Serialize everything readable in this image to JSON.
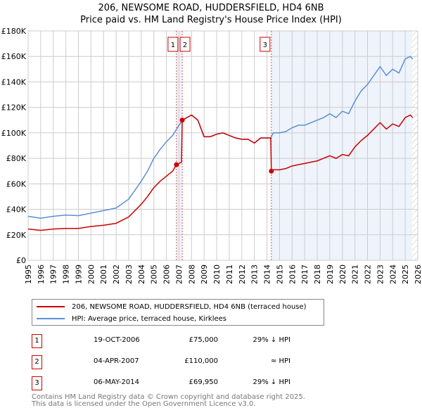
{
  "title": "206, NEWSOME ROAD, HUDDERSFIELD, HD4 6NB",
  "subtitle": "Price paid vs. HM Land Registry's House Price Index (HPI)",
  "chart_data": {
    "type": "line",
    "title": "206, NEWSOME ROAD, HUDDERSFIELD, HD4 6NB — Price paid vs. HM Land Registry's House Price Index (HPI)",
    "xlim": [
      1995,
      2026
    ],
    "ylim": [
      0,
      180000
    ],
    "x_ticks": [
      "1995",
      "1996",
      "1997",
      "1998",
      "1999",
      "2000",
      "2001",
      "2002",
      "2003",
      "2004",
      "2005",
      "2006",
      "2007",
      "2008",
      "2009",
      "2010",
      "2011",
      "2012",
      "2013",
      "2014",
      "2015",
      "2016",
      "2017",
      "2018",
      "2019",
      "2020",
      "2021",
      "2022",
      "2023",
      "2024",
      "2025",
      "2026"
    ],
    "y_ticks": [
      {
        "v": 0,
        "label": "£0"
      },
      {
        "v": 20000,
        "label": "£20K"
      },
      {
        "v": 40000,
        "label": "£40K"
      },
      {
        "v": 60000,
        "label": "£60K"
      },
      {
        "v": 80000,
        "label": "£80K"
      },
      {
        "v": 100000,
        "label": "£100K"
      },
      {
        "v": 120000,
        "label": "£120K"
      },
      {
        "v": 140000,
        "label": "£140K"
      },
      {
        "v": 160000,
        "label": "£160K"
      },
      {
        "v": 180000,
        "label": "£180K"
      }
    ],
    "grid": true,
    "series": [
      {
        "name": "206, NEWSOME ROAD, HUDDERSFIELD, HD4 6NB (terraced house)",
        "color": "#cc0000",
        "x": [
          1995,
          1996,
          1997,
          1998,
          1999,
          2000,
          2001,
          2002,
          2003,
          2004,
          2004.5,
          2005,
          2005.5,
          2006,
          2006.5,
          2006.8,
          2007.2,
          2007.26,
          2008,
          2008.5,
          2009,
          2009.5,
          2010,
          2010.5,
          2011,
          2011.5,
          2012,
          2012.5,
          2013,
          2013.5,
          2014,
          2014.3,
          2014.35,
          2014.5,
          2015,
          2015.5,
          2016,
          2016.5,
          2017,
          2017.5,
          2018,
          2018.5,
          2019,
          2019.5,
          2020,
          2020.5,
          2021,
          2021.5,
          2022,
          2022.5,
          2023,
          2023.5,
          2024,
          2024.5,
          2025,
          2025.4,
          2025.6
        ],
        "y": [
          24500,
          23500,
          24500,
          25000,
          25000,
          26500,
          27500,
          29000,
          34000,
          44000,
          50000,
          57000,
          62000,
          66000,
          70000,
          75000,
          77000,
          110000,
          114000,
          110000,
          97000,
          97000,
          99000,
          100000,
          98000,
          96000,
          95000,
          95000,
          92000,
          96000,
          96000,
          96000,
          69950,
          71000,
          71000,
          72000,
          74000,
          75000,
          76000,
          77000,
          78000,
          80000,
          82000,
          80000,
          83000,
          82000,
          89000,
          94000,
          98000,
          103000,
          108000,
          103000,
          107000,
          105000,
          112000,
          114000,
          112000
        ]
      },
      {
        "name": "HPI: Average price, terraced house, Kirklees",
        "color": "#5b8fd4",
        "x": [
          1995,
          1996,
          1997,
          1998,
          1999,
          2000,
          2001,
          2002,
          2003,
          2004,
          2004.5,
          2005,
          2005.5,
          2006,
          2006.5,
          2007,
          2007.3,
          2008,
          2008.5,
          2009,
          2009.5,
          2010,
          2010.5,
          2011,
          2011.5,
          2012,
          2012.5,
          2013,
          2013.5,
          2014,
          2014.3,
          2014.5,
          2015,
          2015.5,
          2016,
          2016.5,
          2017,
          2017.5,
          2018,
          2018.5,
          2019,
          2019.5,
          2020,
          2020.5,
          2021,
          2021.5,
          2022,
          2022.5,
          2023,
          2023.5,
          2024,
          2024.5,
          2025,
          2025.4,
          2025.6
        ],
        "y": [
          34500,
          33000,
          34500,
          35500,
          35000,
          37000,
          39000,
          41000,
          48000,
          62000,
          70000,
          80000,
          87000,
          93000,
          98000,
          106000,
          110000,
          114000,
          110000,
          97000,
          97000,
          99000,
          100000,
          98000,
          96000,
          95000,
          95000,
          92000,
          96000,
          96000,
          96000,
          100000,
          100000,
          101000,
          104000,
          106000,
          106000,
          108000,
          110000,
          112000,
          115000,
          112000,
          117000,
          115000,
          125000,
          133000,
          138000,
          145000,
          152000,
          145000,
          150000,
          147000,
          158000,
          160000,
          158000
        ]
      }
    ],
    "sales": [
      {
        "label": "1",
        "x": 2006.8,
        "y": 75000
      },
      {
        "label": "2",
        "x": 2007.26,
        "y": 110000
      },
      {
        "label": "3",
        "x": 2014.35,
        "y": 69950
      }
    ],
    "shaded_from": 2014.35,
    "hatched_from": 2025.55,
    "legend_position": "below"
  },
  "legend": [
    "206, NEWSOME ROAD, HUDDERSFIELD, HD4 6NB (terraced house)",
    "HPI: Average price, terraced house, Kirklees"
  ],
  "transactions": [
    {
      "num": "1",
      "date": "19-OCT-2006",
      "price": "£75,000",
      "hpi": "29% ↓ HPI"
    },
    {
      "num": "2",
      "date": "04-APR-2007",
      "price": "£110,000",
      "hpi": "≈ HPI"
    },
    {
      "num": "3",
      "date": "06-MAY-2014",
      "price": "£69,950",
      "hpi": "29% ↓ HPI"
    }
  ],
  "footer": [
    "Contains HM Land Registry data © Crown copyright and database right 2025.",
    "This data is licensed under the Open Government Licence v3.0."
  ]
}
